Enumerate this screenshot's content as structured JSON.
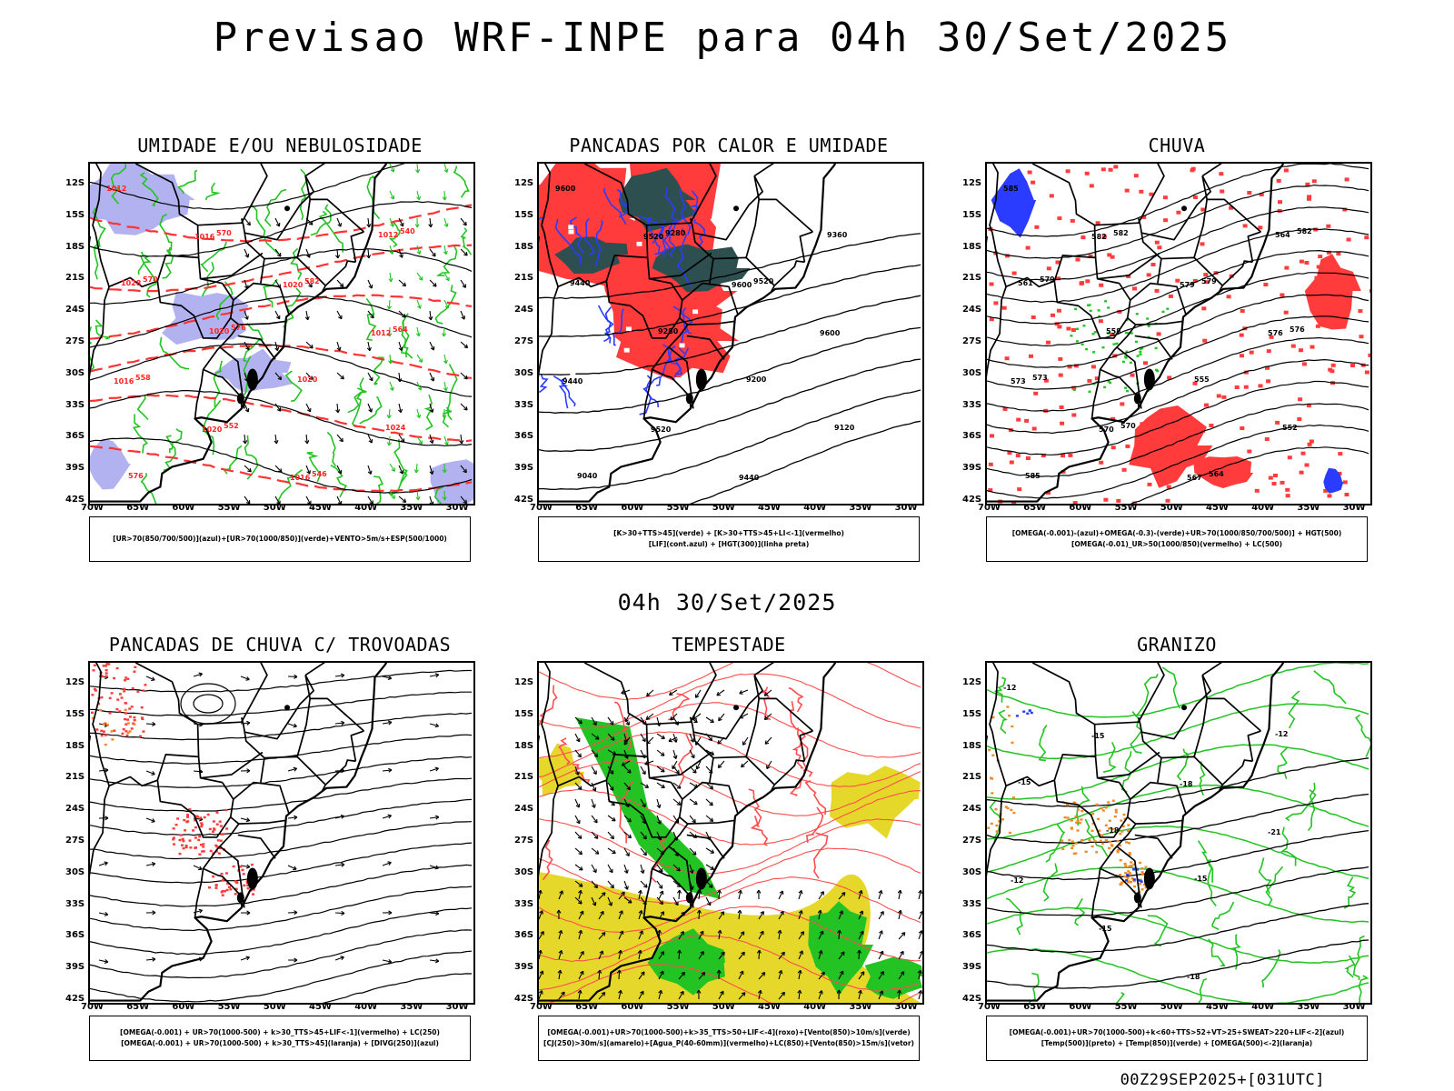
{
  "title": "Previsao WRF-INPE  para 04h 30/Set/2025",
  "subtitle": "04h 30/Set/2025",
  "footer": "00Z29SEP2025+[031UTC]",
  "lat_labels": [
    "12S",
    "15S",
    "18S",
    "21S",
    "24S",
    "27S",
    "30S",
    "33S",
    "36S",
    "39S",
    "42S"
  ],
  "lon_labels": [
    "70W",
    "65W",
    "60W",
    "55W",
    "50W",
    "45W",
    "40W",
    "35W",
    "30W"
  ],
  "colors": {
    "red": "#ff3b3b",
    "green": "#22c322",
    "blue": "#2a3cff",
    "lilac": "#aaaaf0",
    "teal": "#2e4f4f",
    "yellow": "#e6d82a",
    "orange": "#f08a24",
    "black": "#000000"
  },
  "panels": [
    {
      "title": "UMIDADE E/OU NEBULOSIDADE",
      "legend": [
        "[UR>70(850/700/500)](azul)+[UR>70(1000/850)](verde)+VENTO>5m/s+ESP(500/1000)"
      ],
      "contour_labels": [
        "1012",
        "1016",
        "1020",
        "1012",
        "1016",
        "1020",
        "1016",
        "1012",
        "1028",
        "1020",
        "1020",
        "1024",
        "576",
        "570",
        "582",
        "564",
        "558",
        "552",
        "546",
        "540",
        "570",
        "576"
      ]
    },
    {
      "title": "PANCADAS POR CALOR E UMIDADE",
      "legend": [
        "[K>30+TTS>45](verde) + [K>30+TTS>45+LI<-1](vermelho)",
        "[LIF](cont.azul) + [HGT(300)](linha preta)"
      ],
      "contour_labels": [
        "9600",
        "9520",
        "9600",
        "9600",
        "9440",
        "9520",
        "9440",
        "9360",
        "9440",
        "9280",
        "9200",
        "9120",
        "9040",
        "9280",
        "9520"
      ]
    },
    {
      "title": "CHUVA",
      "legend": [
        "[OMEGA(-0.001)-(azul)+OMEGA(-0.3)-(verde)+UR>70(1000/850/700/500)] + HGT(500)",
        "[OMEGA(-0.01)_UR>50(1000/850)(vermelho) + LC(500)"
      ],
      "contour_labels": [
        "585",
        "582",
        "579",
        "576",
        "573",
        "570",
        "567",
        "564",
        "561",
        "558",
        "555",
        "552",
        "585",
        "582",
        "579",
        "576",
        "573",
        "570",
        "564",
        "582",
        "579"
      ]
    },
    {
      "title": "PANCADAS DE CHUVA C/ TROVOADAS",
      "legend": [
        "[OMEGA(-0.001) + UR>70(1000-500) + k>30_TTS>45+LIF<-1](vermelho) + LC(250)",
        "[OMEGA(-0.001) + UR>70(1000-500) + k>30_TTS>45](laranja) + [DIVG(250)](azul)"
      ],
      "contour_labels": []
    },
    {
      "title": "TEMPESTADE",
      "legend": [
        "[OMEGA(-0.001)+UR>70(1000-500)+k>35_TTS>50+LIF<-4](roxo)+[Vento(850)>10m/s](verde)",
        "[CJ(250)>30m/s](amarelo)+[Agua_P(40-60mm)](vermelho)+LC(850)+[Vento(850)>15m/s](vetor)"
      ],
      "contour_labels": []
    },
    {
      "title": "GRANIZO",
      "legend": [
        "[OMEGA(-0.001)+UR>70(1000-500)+k<60+TTS>52+VT>25+SWEAT>220+LIF<-2](azul)",
        "[Temp(500)](preto) + [Temp(850)](verde) + [OMEGA(500)<-2](laranja)"
      ],
      "contour_labels": [
        "-12",
        "-15",
        "-18",
        "-21",
        "-12",
        "-15",
        "-18",
        "-12",
        "-15",
        "-18",
        "-15"
      ]
    }
  ]
}
